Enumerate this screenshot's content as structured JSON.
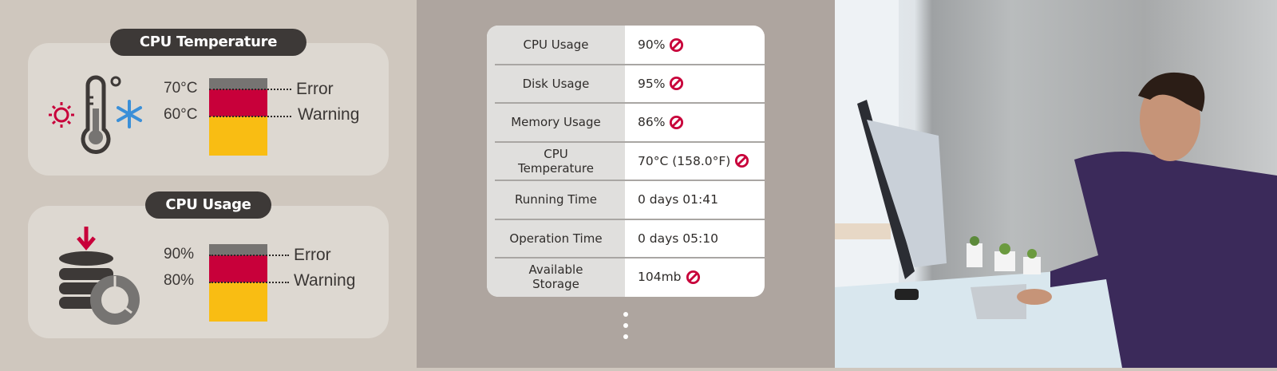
{
  "temperature_card": {
    "title": "CPU Temperature",
    "error_threshold": "70°C",
    "warning_threshold": "60°C",
    "error_label": "Error",
    "warning_label": "Warning",
    "icons": [
      "sun-icon",
      "thermometer-icon",
      "snowflake-icon"
    ]
  },
  "usage_card": {
    "title": "CPU Usage",
    "error_threshold": "90%",
    "warning_threshold": "80%",
    "error_label": "Error",
    "warning_label": "Warning",
    "icons": [
      "database-download-icon",
      "pie-chart-icon"
    ]
  },
  "colors": {
    "error": "#c8003a",
    "warning": "#f9bd13",
    "over": "#767472",
    "pill": "#3d3937",
    "alert": "#c8003a"
  },
  "status_table": {
    "rows": [
      {
        "label": "CPU Usage",
        "value": "90%",
        "alert": true
      },
      {
        "label": "Disk Usage",
        "value": "95%",
        "alert": true
      },
      {
        "label": "Memory Usage",
        "value": "86%",
        "alert": true
      },
      {
        "label": "CPU Temperature",
        "value": "70°C (158.0°F)",
        "alert": true
      },
      {
        "label": "Running Time",
        "value": "0 days 01:41",
        "alert": false
      },
      {
        "label": "Operation Time",
        "value": "0 days 05:10",
        "alert": false
      },
      {
        "label": "Available Storage",
        "value": "104mb",
        "alert": true
      }
    ],
    "more_icon": "vertical-ellipsis-icon"
  }
}
